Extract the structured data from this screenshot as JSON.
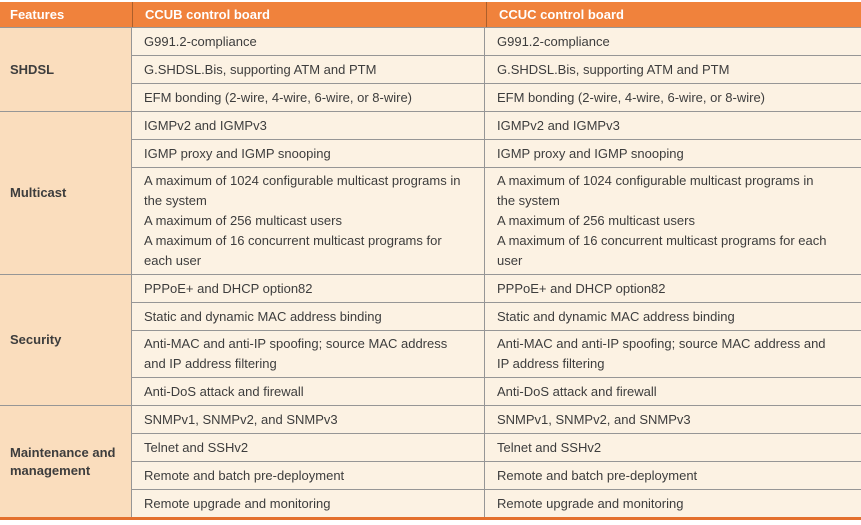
{
  "header": {
    "features": "Features",
    "ccub": "CCUB control board",
    "ccuc": "CCUC control board"
  },
  "colors": {
    "header_bg": "#F0823C",
    "header_text": "#FFFFFF",
    "feature_bg": "#FADDBD",
    "cell_bg": "#FCF2E3",
    "border": "#969696",
    "header_border": "#AC5F2B",
    "bottom_bar": "#E4702D",
    "text": "#3D3D3D"
  },
  "sections": [
    {
      "feature": "SHDSL",
      "rows": [
        {
          "ccub": "G991.2-compliance",
          "ccuc": "G991.2-compliance"
        },
        {
          "ccub": "G.SHDSL.Bis, supporting ATM and PTM",
          "ccuc": "G.SHDSL.Bis, supporting ATM and PTM"
        },
        {
          "ccub": "EFM bonding (2-wire, 4-wire, 6-wire, or 8-wire)",
          "ccuc": "EFM bonding (2-wire, 4-wire, 6-wire, or 8-wire)"
        }
      ]
    },
    {
      "feature": "Multicast",
      "rows": [
        {
          "ccub": "IGMPv2 and IGMPv3",
          "ccuc": "IGMPv2 and IGMPv3"
        },
        {
          "ccub": "IGMP proxy and IGMP snooping",
          "ccuc": "IGMP proxy and IGMP snooping"
        },
        {
          "ccub": "A maximum of 1024 configurable multicast programs in the system\nA maximum of 256 multicast users\nA maximum of 16 concurrent multicast programs for each user",
          "ccuc": "A maximum of 1024 configurable multicast programs in the system\nA maximum of 256 multicast users\nA maximum of 16 concurrent multicast programs for each user"
        }
      ]
    },
    {
      "feature": "Security",
      "rows": [
        {
          "ccub": "PPPoE+ and DHCP option82",
          "ccuc": "PPPoE+ and DHCP option82"
        },
        {
          "ccub": "Static and dynamic MAC address binding",
          "ccuc": "Static and dynamic MAC address binding"
        },
        {
          "ccub": "Anti-MAC and anti-IP spoofing; source MAC address and IP address filtering",
          "ccuc": "Anti-MAC and anti-IP spoofing; source MAC address and IP address filtering"
        },
        {
          "ccub": "Anti-DoS attack and firewall",
          "ccuc": "Anti-DoS attack and firewall"
        }
      ]
    },
    {
      "feature": "Maintenance and management",
      "rows": [
        {
          "ccub": "SNMPv1, SNMPv2, and SNMPv3",
          "ccuc": "SNMPv1, SNMPv2, and SNMPv3"
        },
        {
          "ccub": "Telnet and SSHv2",
          "ccuc": "Telnet and SSHv2"
        },
        {
          "ccub": "Remote and batch pre-deployment",
          "ccuc": "Remote and batch pre-deployment"
        },
        {
          "ccub": "Remote upgrade and monitoring",
          "ccuc": "Remote upgrade and monitoring"
        }
      ]
    }
  ]
}
